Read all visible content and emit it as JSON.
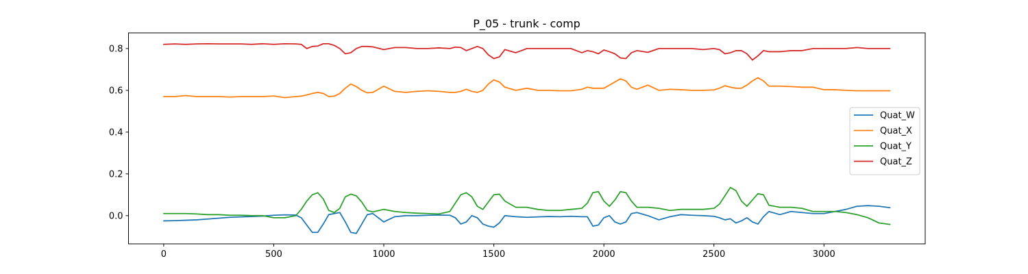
{
  "chart_data": {
    "type": "line",
    "title": "P_05 - trunk - comp",
    "xlabel": "",
    "ylabel": "",
    "xlim": [
      -160,
      3460
    ],
    "ylim": [
      -0.135,
      0.875
    ],
    "xticks": [
      0,
      500,
      1000,
      1500,
      2000,
      2500,
      3000
    ],
    "yticks": [
      0.0,
      0.2,
      0.4,
      0.6,
      0.8
    ],
    "ytick_labels": [
      "0.0",
      "0.2",
      "0.4",
      "0.6",
      "0.8"
    ],
    "grid": false,
    "legend_position": "center-right",
    "x": [
      0,
      50,
      100,
      150,
      200,
      250,
      300,
      350,
      400,
      450,
      500,
      550,
      600,
      625,
      650,
      675,
      700,
      725,
      750,
      775,
      800,
      825,
      850,
      875,
      900,
      925,
      950,
      1000,
      1050,
      1100,
      1150,
      1200,
      1250,
      1300,
      1325,
      1350,
      1375,
      1400,
      1425,
      1450,
      1475,
      1500,
      1525,
      1550,
      1600,
      1650,
      1700,
      1750,
      1800,
      1850,
      1900,
      1925,
      1950,
      1975,
      2000,
      2025,
      2050,
      2075,
      2100,
      2125,
      2150,
      2200,
      2250,
      2300,
      2350,
      2400,
      2450,
      2500,
      2525,
      2550,
      2575,
      2600,
      2625,
      2650,
      2675,
      2700,
      2725,
      2750,
      2800,
      2850,
      2900,
      2950,
      3000,
      3050,
      3100,
      3150,
      3200,
      3250,
      3300
    ],
    "series": [
      {
        "name": "Quat_W",
        "color": "#1f77b4",
        "values": [
          -0.025,
          -0.024,
          -0.022,
          -0.02,
          -0.016,
          -0.012,
          -0.008,
          -0.006,
          -0.004,
          -0.002,
          0.002,
          0.004,
          0.003,
          -0.01,
          -0.045,
          -0.08,
          -0.08,
          -0.04,
          0.005,
          0.01,
          0.015,
          -0.03,
          -0.08,
          -0.085,
          -0.04,
          0.005,
          0.01,
          -0.03,
          -0.005,
          0.0,
          0.0,
          0.002,
          0.003,
          0.002,
          -0.01,
          -0.04,
          -0.03,
          0.0,
          -0.01,
          -0.04,
          -0.05,
          -0.055,
          -0.035,
          0.0,
          -0.005,
          -0.008,
          -0.006,
          -0.004,
          -0.005,
          -0.003,
          -0.005,
          -0.005,
          -0.05,
          -0.045,
          -0.01,
          0.0,
          -0.03,
          -0.04,
          -0.03,
          0.01,
          0.015,
          0.0,
          -0.02,
          -0.005,
          0.005,
          0.002,
          0.0,
          -0.003,
          -0.01,
          -0.02,
          -0.015,
          -0.035,
          -0.025,
          -0.01,
          -0.03,
          -0.04,
          -0.005,
          0.02,
          0.005,
          0.02,
          0.015,
          0.01,
          0.01,
          0.02,
          0.03,
          0.045,
          0.048,
          0.045,
          0.038
        ]
      },
      {
        "name": "Quat_X",
        "color": "#ff7f0e",
        "values": [
          0.57,
          0.57,
          0.575,
          0.57,
          0.57,
          0.57,
          0.568,
          0.57,
          0.57,
          0.57,
          0.573,
          0.565,
          0.57,
          0.572,
          0.578,
          0.585,
          0.59,
          0.585,
          0.57,
          0.572,
          0.585,
          0.61,
          0.63,
          0.618,
          0.6,
          0.588,
          0.59,
          0.62,
          0.595,
          0.59,
          0.595,
          0.598,
          0.595,
          0.59,
          0.59,
          0.595,
          0.605,
          0.595,
          0.59,
          0.6,
          0.63,
          0.65,
          0.64,
          0.615,
          0.6,
          0.61,
          0.6,
          0.6,
          0.598,
          0.598,
          0.605,
          0.615,
          0.61,
          0.61,
          0.61,
          0.625,
          0.64,
          0.655,
          0.645,
          0.615,
          0.605,
          0.625,
          0.6,
          0.605,
          0.603,
          0.6,
          0.6,
          0.602,
          0.61,
          0.622,
          0.615,
          0.61,
          0.61,
          0.625,
          0.645,
          0.66,
          0.645,
          0.62,
          0.62,
          0.618,
          0.615,
          0.615,
          0.603,
          0.603,
          0.6,
          0.598,
          0.598,
          0.598,
          0.598
        ]
      },
      {
        "name": "Quat_Y",
        "color": "#2ca02c",
        "values": [
          0.01,
          0.01,
          0.01,
          0.008,
          0.005,
          0.005,
          0.002,
          0.002,
          0.0,
          0.0,
          -0.01,
          -0.01,
          0.0,
          0.03,
          0.07,
          0.1,
          0.11,
          0.08,
          0.025,
          0.015,
          0.035,
          0.09,
          0.103,
          0.095,
          0.065,
          0.025,
          0.018,
          0.03,
          0.02,
          0.015,
          0.012,
          0.01,
          0.008,
          0.02,
          0.06,
          0.1,
          0.11,
          0.09,
          0.045,
          0.03,
          0.065,
          0.1,
          0.103,
          0.07,
          0.04,
          0.04,
          0.03,
          0.025,
          0.025,
          0.03,
          0.035,
          0.06,
          0.11,
          0.115,
          0.07,
          0.045,
          0.075,
          0.115,
          0.11,
          0.07,
          0.04,
          0.04,
          0.035,
          0.025,
          0.03,
          0.03,
          0.03,
          0.035,
          0.055,
          0.095,
          0.135,
          0.12,
          0.07,
          0.045,
          0.075,
          0.105,
          0.1,
          0.05,
          0.04,
          0.04,
          0.035,
          0.02,
          0.02,
          0.02,
          0.015,
          0.005,
          -0.01,
          -0.035,
          -0.042
        ]
      },
      {
        "name": "Quat_Z",
        "color": "#d62728",
        "values": [
          0.82,
          0.822,
          0.82,
          0.822,
          0.823,
          0.822,
          0.822,
          0.822,
          0.82,
          0.823,
          0.82,
          0.823,
          0.822,
          0.82,
          0.8,
          0.81,
          0.812,
          0.823,
          0.823,
          0.815,
          0.8,
          0.775,
          0.78,
          0.8,
          0.81,
          0.81,
          0.808,
          0.795,
          0.805,
          0.805,
          0.8,
          0.8,
          0.803,
          0.8,
          0.807,
          0.805,
          0.79,
          0.8,
          0.81,
          0.8,
          0.77,
          0.752,
          0.76,
          0.795,
          0.78,
          0.8,
          0.8,
          0.8,
          0.8,
          0.8,
          0.78,
          0.79,
          0.785,
          0.775,
          0.793,
          0.785,
          0.775,
          0.755,
          0.752,
          0.78,
          0.79,
          0.782,
          0.8,
          0.8,
          0.8,
          0.8,
          0.795,
          0.8,
          0.795,
          0.775,
          0.78,
          0.79,
          0.79,
          0.775,
          0.745,
          0.765,
          0.79,
          0.785,
          0.785,
          0.79,
          0.79,
          0.8,
          0.8,
          0.8,
          0.8,
          0.805,
          0.8,
          0.8,
          0.8
        ]
      }
    ]
  }
}
